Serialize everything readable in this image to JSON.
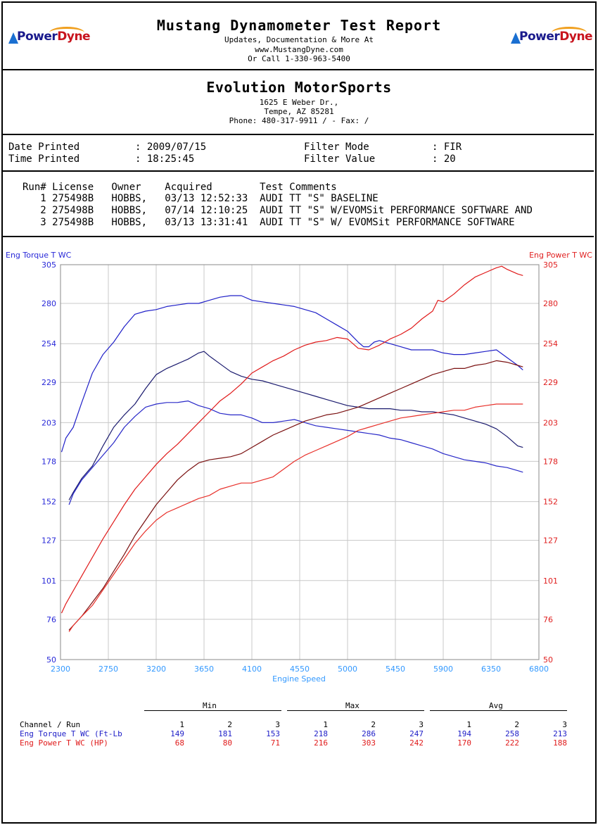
{
  "header": {
    "title": "Mustang Dynamometer Test Report",
    "line1": "Updates, Documentation & More At",
    "line2": "www.MustangDyne.com",
    "line3": "Or Call 1-330-963-5400",
    "logo_word_1": "Power",
    "logo_word_2": "Dyne"
  },
  "shop": {
    "name": "Evolution MotorSports",
    "address": "1625 E Weber Dr.,",
    "city": "Tempe, AZ  85281",
    "phone": "Phone: 480-317-9911 /  - Fax:  /"
  },
  "info": {
    "date_label": "Date Printed",
    "date_value": ": 2009/07/15",
    "time_label": "Time Printed",
    "time_value": ": 18:25:45",
    "filter_mode_label": "Filter Mode",
    "filter_mode_value": ": FIR",
    "filter_value_label": "Filter Value",
    "filter_value_value": ": 20"
  },
  "runs": {
    "header": "Run# License   Owner    Acquired        Test Comments",
    "rows": [
      "   1 275498B   HOBBS,   03/13 12:52:33  AUDI TT \"S\" BASELINE",
      "   2 275498B   HOBBS,   07/14 12:10:25  AUDI TT \"S\" W/EVOMSit PERFORMANCE SOFTWARE AND",
      "   3 275498B   HOBBS,   03/13 13:31:41  AUDI TT \"S\" W/ EVOMSit PERFORMANCE SOFTWARE"
    ]
  },
  "chart_data": {
    "type": "line",
    "xlabel": "Engine Speed",
    "ylabel_left": "Eng Torque T WC",
    "ylabel_right": "Eng Power T WC",
    "xlim": [
      2300,
      6800
    ],
    "x_ticks": [
      "2300",
      "2750",
      "3200",
      "3650",
      "4100",
      "4550",
      "5000",
      "5450",
      "5900",
      "6350",
      "6800"
    ],
    "ylim_left": [
      50,
      305
    ],
    "y_ticks_left": [
      "50",
      "76",
      "101",
      "127",
      "152",
      "178",
      "203",
      "229",
      "254",
      "280",
      "305"
    ],
    "ylim_right": [
      50,
      305
    ],
    "y_ticks_right": [
      "50",
      "76",
      "101",
      "127",
      "152",
      "178",
      "203",
      "229",
      "254",
      "280",
      "305"
    ],
    "grid": true,
    "colors": {
      "torque": "#2020c8",
      "power": "#e01a1a",
      "torque_dark": "#1a1a6e",
      "power_dark": "#7a1010",
      "left_axis": "#2828d8",
      "right_axis": "#e02020",
      "xaxis": "#3399ff",
      "grid": "#c8c8c8"
    },
    "series": [
      {
        "axis": "left",
        "color": "#2020c8",
        "x": [
          2310,
          2350,
          2420,
          2500,
          2600,
          2700,
          2800,
          2900,
          3000,
          3100,
          3200,
          3300,
          3400,
          3500,
          3600,
          3700,
          3800,
          3900,
          4000,
          4100,
          4200,
          4300,
          4400,
          4500,
          4600,
          4700,
          4800,
          4900,
          5000,
          5100,
          5150,
          5200,
          5250,
          5300,
          5400,
          5500,
          5600,
          5700,
          5800,
          5900,
          6000,
          6100,
          6200,
          6300,
          6400,
          6500,
          6600,
          6650
        ],
        "y": [
          184,
          193,
          200,
          216,
          235,
          247,
          255,
          265,
          273,
          275,
          276,
          278,
          279,
          280,
          280,
          282,
          284,
          285,
          285,
          282,
          281,
          280,
          279,
          278,
          276,
          274,
          270,
          266,
          262,
          255,
          252,
          252,
          255,
          256,
          254,
          252,
          250,
          250,
          250,
          248,
          247,
          247,
          248,
          249,
          250,
          245,
          240,
          237
        ]
      },
      {
        "axis": "left",
        "color": "#1a1a6e",
        "x": [
          2380,
          2420,
          2500,
          2600,
          2700,
          2800,
          2900,
          3000,
          3100,
          3200,
          3300,
          3400,
          3500,
          3600,
          3650,
          3700,
          3800,
          3900,
          4000,
          4100,
          4200,
          4300,
          4400,
          4500,
          4600,
          4700,
          4800,
          4900,
          5000,
          5100,
          5200,
          5300,
          5400,
          5500,
          5600,
          5700,
          5800,
          5900,
          6000,
          6100,
          6200,
          6300,
          6400,
          6500,
          6600,
          6650
        ],
        "y": [
          153,
          158,
          167,
          175,
          188,
          200,
          208,
          215,
          225,
          234,
          238,
          241,
          244,
          248,
          249,
          246,
          241,
          236,
          233,
          231,
          230,
          228,
          226,
          224,
          222,
          220,
          218,
          216,
          214,
          213,
          212,
          212,
          212,
          211,
          211,
          210,
          210,
          209,
          208,
          206,
          204,
          202,
          199,
          194,
          188,
          187
        ]
      },
      {
        "axis": "left",
        "color": "#2828c8",
        "x": [
          2380,
          2420,
          2500,
          2600,
          2700,
          2800,
          2900,
          3000,
          3100,
          3200,
          3300,
          3400,
          3500,
          3600,
          3700,
          3800,
          3900,
          4000,
          4100,
          4200,
          4300,
          4400,
          4500,
          4600,
          4700,
          4800,
          4900,
          5000,
          5100,
          5200,
          5300,
          5400,
          5500,
          5600,
          5700,
          5800,
          5900,
          6000,
          6100,
          6200,
          6300,
          6400,
          6500,
          6600,
          6650
        ],
        "y": [
          150,
          157,
          166,
          174,
          182,
          190,
          200,
          207,
          213,
          215,
          216,
          216,
          217,
          214,
          212,
          209,
          208,
          208,
          206,
          203,
          203,
          204,
          205,
          203,
          201,
          200,
          199,
          198,
          197,
          196,
          195,
          193,
          192,
          190,
          188,
          186,
          183,
          181,
          179,
          178,
          177,
          175,
          174,
          172,
          171
        ]
      },
      {
        "axis": "right",
        "color": "#e01a1a",
        "x": [
          2310,
          2350,
          2400,
          2500,
          2600,
          2700,
          2800,
          2900,
          3000,
          3100,
          3200,
          3300,
          3400,
          3500,
          3600,
          3700,
          3800,
          3900,
          4000,
          4100,
          4200,
          4300,
          4400,
          4500,
          4600,
          4700,
          4800,
          4900,
          5000,
          5050,
          5100,
          5200,
          5300,
          5400,
          5500,
          5600,
          5700,
          5800,
          5850,
          5900,
          6000,
          6100,
          6200,
          6300,
          6400,
          6450,
          6500,
          6600,
          6650
        ],
        "y": [
          80,
          86,
          92,
          104,
          116,
          128,
          139,
          150,
          160,
          168,
          176,
          183,
          189,
          196,
          203,
          210,
          217,
          222,
          228,
          235,
          239,
          243,
          246,
          250,
          253,
          255,
          256,
          258,
          257,
          254,
          251,
          250,
          253,
          257,
          260,
          264,
          270,
          275,
          282,
          281,
          286,
          292,
          297,
          300,
          303,
          304,
          302,
          299,
          298
        ]
      },
      {
        "axis": "right",
        "color": "#7a1010",
        "x": [
          2380,
          2420,
          2500,
          2600,
          2700,
          2800,
          2900,
          3000,
          3100,
          3200,
          3300,
          3400,
          3500,
          3600,
          3700,
          3800,
          3900,
          4000,
          4100,
          4200,
          4300,
          4400,
          4500,
          4600,
          4700,
          4800,
          4900,
          5000,
          5100,
          5200,
          5300,
          5400,
          5500,
          5600,
          5700,
          5800,
          5900,
          6000,
          6100,
          6200,
          6300,
          6400,
          6500,
          6600,
          6650
        ],
        "y": [
          69,
          72,
          78,
          87,
          96,
          107,
          118,
          130,
          140,
          150,
          158,
          166,
          172,
          177,
          179,
          180,
          181,
          183,
          187,
          191,
          195,
          198,
          201,
          204,
          206,
          208,
          209,
          211,
          213,
          216,
          219,
          222,
          225,
          228,
          231,
          234,
          236,
          238,
          238,
          240,
          241,
          243,
          242,
          240,
          239
        ]
      },
      {
        "axis": "right",
        "color": "#e8302a",
        "x": [
          2380,
          2420,
          2500,
          2600,
          2700,
          2800,
          2900,
          3000,
          3100,
          3200,
          3300,
          3400,
          3500,
          3600,
          3700,
          3800,
          3900,
          4000,
          4100,
          4200,
          4300,
          4400,
          4500,
          4600,
          4700,
          4800,
          4900,
          5000,
          5100,
          5200,
          5300,
          5400,
          5500,
          5600,
          5700,
          5800,
          5900,
          6000,
          6100,
          6200,
          6300,
          6400,
          6500,
          6600,
          6650
        ],
        "y": [
          68,
          72,
          78,
          85,
          95,
          105,
          115,
          125,
          133,
          140,
          145,
          148,
          151,
          154,
          156,
          160,
          162,
          164,
          164,
          166,
          168,
          173,
          178,
          182,
          185,
          188,
          191,
          194,
          198,
          200,
          202,
          204,
          206,
          207,
          208,
          209,
          210,
          211,
          211,
          213,
          214,
          215,
          215,
          215,
          215
        ]
      }
    ]
  },
  "summary": {
    "group_min": "Min",
    "group_max": "Max",
    "group_avg": "Avg",
    "channel_header": "Channel / Run",
    "run_numbers": [
      "1",
      "2",
      "3",
      "1",
      "2",
      "3",
      "1",
      "2",
      "3"
    ],
    "torque_label": "Eng Torque T WC (Ft-Lb",
    "torque_values": [
      "149",
      "181",
      "153",
      "218",
      "286",
      "247",
      "194",
      "258",
      "213"
    ],
    "power_label": "Eng Power T WC (HP)",
    "power_values": [
      "68",
      "80",
      "71",
      "216",
      "303",
      "242",
      "170",
      "222",
      "188"
    ]
  }
}
